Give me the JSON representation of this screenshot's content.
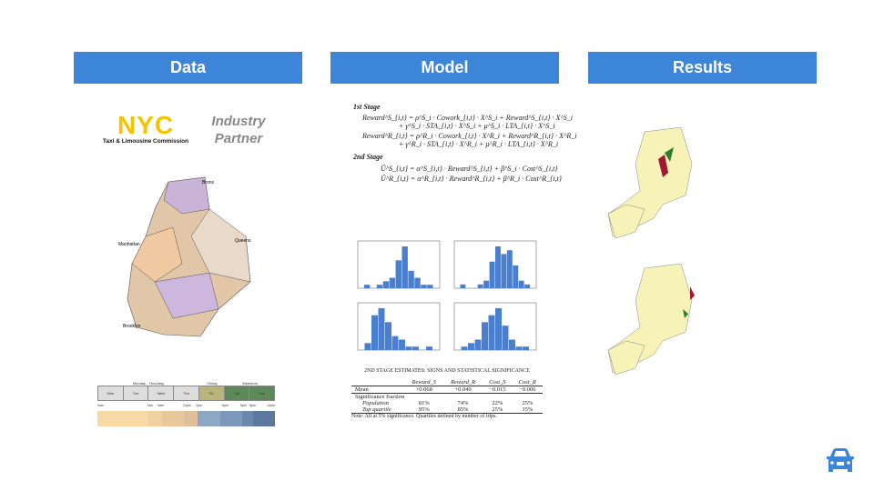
{
  "columns": [
    {
      "title": "Data"
    },
    {
      "title": "Model"
    },
    {
      "title": "Results"
    }
  ],
  "data": {
    "logo_text": "NYC",
    "logo_subtitle": "Taxi & Limousine Commission",
    "partner_label": [
      "Industry",
      "Partner"
    ],
    "map_labels": [
      "Bronx",
      "Manhattan",
      "Queens",
      "Brooklyn"
    ],
    "schedule": {
      "groups": [
        "Monday - Thursday",
        "Friday",
        "Weekend"
      ],
      "days": [
        "Mon",
        "Tue",
        "Wed",
        "Thu",
        "Fri",
        "Sat",
        "Sun"
      ],
      "times": [
        "0am",
        "7am",
        "9am",
        "12pm",
        "2pm",
        "5pm",
        "8pm",
        "8pm",
        "12am"
      ]
    }
  },
  "model": {
    "stage1": "1st Stage",
    "eq1a": "Reward^S_{i,t} = ρ^S_i · Cowork_{i,t} · X^S_i + Reward^S_{i,t} · X^S_i",
    "eq1b": "+ γ^S_i · STA_{i,t} · X^S_i + μ^S_i · LTA_{i,t} · X^S_i",
    "eq2a": "Reward^R_{i,t} = ρ^R_i · Cowork_{i,t} · X^R_i + Reward^R_{i,t} · X^R_i",
    "eq2b": "+ γ^R_i · STA_{i,t} · X^R_i + μ^R_i · LTA_{i,t} · X^R_i",
    "stage2": "2nd Stage",
    "eq3": "Û^S_{i,t} = α^S_{i,t} · Reward^S_{i,t} + β^S_i · Cost^S_{i,t}",
    "eq4": "Û^R_{i,t} = α^R_{i,t} · Reward^R_{i,t} + β^R_i · Cost^R_{i,t}",
    "table": {
      "title": "2ND STAGE ESTIMATES: SIGNS AND STATISTICAL SIGNIFICANCE",
      "headers": [
        "",
        "Reward_S",
        "Reward_R",
        "Cost_S",
        "Cost_R"
      ],
      "mean": [
        "Mean",
        "+0.068",
        "+0.049",
        "−0.015",
        "−0.006"
      ],
      "section": "Significance fraction",
      "population": [
        "Population",
        "81%",
        "74%",
        "22%",
        "25%"
      ],
      "top": [
        "Top quartile",
        "95%",
        "85%",
        "25%",
        "35%"
      ],
      "note": "Note: All at 5% significance. Quartiles defined by number of trips."
    }
  },
  "colors": {
    "header": "#3d85d8",
    "map_fill": "#f7f3b8",
    "highlight_red": "#a0182f",
    "highlight_green": "#2e7d32",
    "bar": "#4a7fd0"
  },
  "icon": "car-icon"
}
